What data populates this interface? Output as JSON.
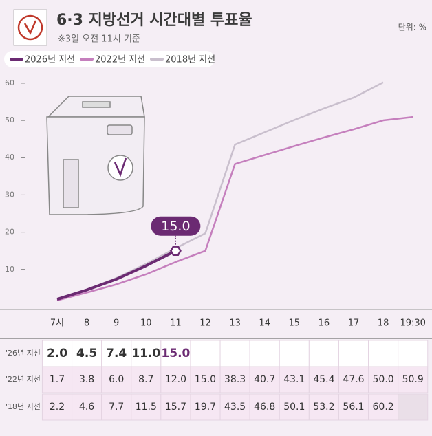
{
  "chart_data": {
    "type": "line",
    "title": "6·3 지방선거 시간대별 투표율",
    "subtitle": "※3일 오전 11시 기준",
    "unit_label": "단위: %",
    "categories": [
      "7시",
      "8",
      "9",
      "10",
      "11",
      "12",
      "13",
      "14",
      "15",
      "16",
      "17",
      "18",
      "19:30"
    ],
    "ylim": [
      0,
      62
    ],
    "yticks": [
      10,
      20,
      30,
      40,
      50,
      60
    ],
    "series": [
      {
        "name": "2026년 지선",
        "table_label": "'26년 지선",
        "color": "#6b2a72",
        "values": [
          2.0,
          4.5,
          7.4,
          11.0,
          15.0,
          null,
          null,
          null,
          null,
          null,
          null,
          null,
          null
        ],
        "value_labels": [
          "2.0",
          "4.5",
          "7.4",
          "11.0",
          "15.0",
          null,
          null,
          null,
          null,
          null,
          null,
          null,
          null
        ]
      },
      {
        "name": "2022년 지선",
        "table_label": "'22년 지선",
        "color": "#c57fbd",
        "values": [
          1.7,
          3.8,
          6.0,
          8.7,
          12.0,
          15.0,
          38.3,
          40.7,
          43.1,
          45.4,
          47.6,
          50.0,
          50.9
        ],
        "value_labels": [
          "1.7",
          "3.8",
          "6.0",
          "8.7",
          "12.0",
          "15.0",
          "38.3",
          "40.7",
          "43.1",
          "45.4",
          "47.6",
          "50.0",
          "50.9"
        ]
      },
      {
        "name": "2018년 지선",
        "table_label": "'18년 지선",
        "color": "#c9bfcd",
        "values": [
          2.2,
          4.6,
          7.7,
          11.5,
          15.7,
          19.7,
          43.5,
          46.8,
          50.1,
          53.2,
          56.1,
          60.2,
          null
        ],
        "value_labels": [
          "2.2",
          "4.6",
          "7.7",
          "11.5",
          "15.7",
          "19.7",
          "43.5",
          "46.8",
          "50.1",
          "53.2",
          "56.1",
          "60.2",
          null
        ]
      }
    ]
  }
}
